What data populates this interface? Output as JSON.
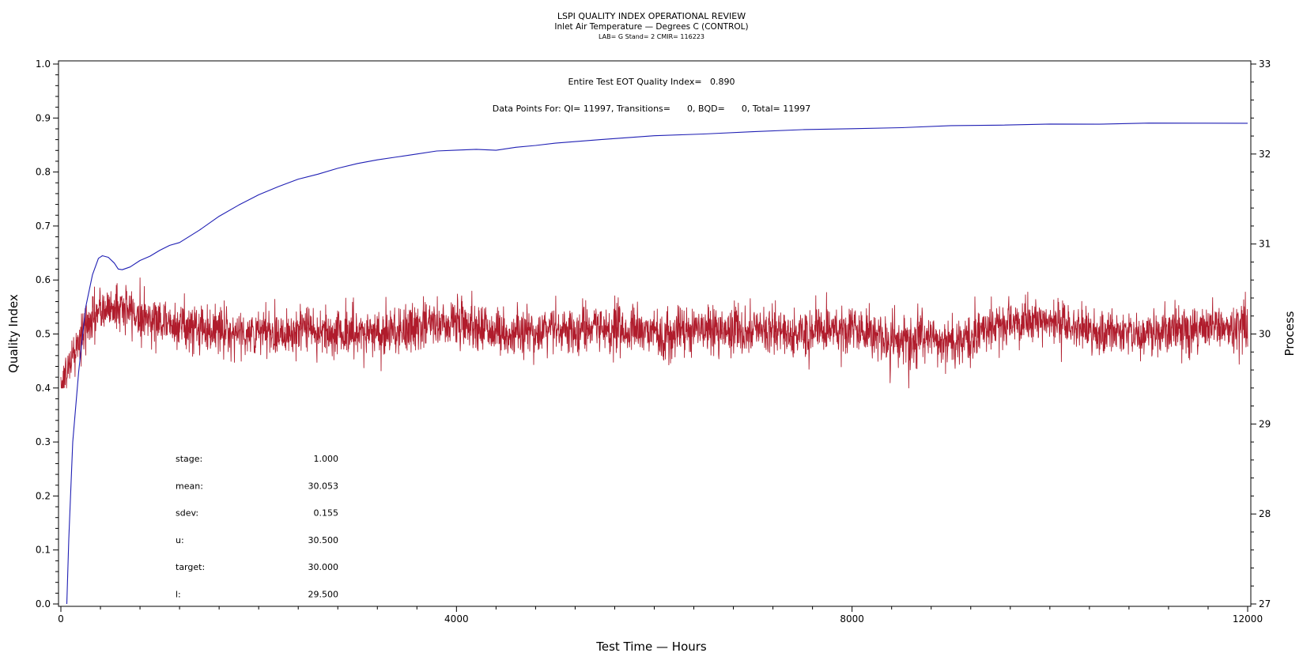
{
  "chart_data": {
    "type": "line",
    "title": "LSPI QUALITY INDEX OPERATIONAL REVIEW",
    "subtitle": "Inlet Air Temperature — Degrees C (CONTROL)",
    "subtitle2": "LAB= G Stand= 2 CMIR= 116223",
    "annotation1": "Entire Test EOT Quality Index=   0.890",
    "annotation2": "Data Points For: QI= 11997, Transitions=      0, BQD=      0, Total= 11997",
    "xlabel": "Test Time — Hours",
    "ylabel": "Quality Index",
    "y2label": "Process",
    "xlim": [
      0,
      12000
    ],
    "ylim": [
      0,
      1
    ],
    "y2lim": [
      27,
      33
    ],
    "x_ticks": [
      "0",
      "4000",
      "8000",
      "12000"
    ],
    "y_ticks": [
      "0.0",
      "0.1",
      "0.2",
      "0.3",
      "0.4",
      "0.5",
      "0.6",
      "0.7",
      "0.8",
      "0.9",
      "1.0"
    ],
    "y2_ticks": [
      "27",
      "28",
      "29",
      "30",
      "31",
      "32",
      "33"
    ],
    "series": [
      {
        "name": "Quality Index",
        "axis": "left",
        "color": "#1f1fb4",
        "x": [
          60,
          80,
          120,
          180,
          250,
          320,
          380,
          420,
          480,
          540,
          580,
          620,
          700,
          800,
          900,
          1000,
          1100,
          1200,
          1400,
          1600,
          1800,
          2000,
          2200,
          2400,
          2600,
          2800,
          3000,
          3200,
          3400,
          3600,
          3800,
          4000,
          4200,
          4400,
          4600,
          4800,
          5000,
          5500,
          6000,
          6500,
          7000,
          7500,
          8000,
          8500,
          9000,
          9500,
          10000,
          10500,
          11000,
          11500,
          12000
        ],
        "values": [
          0.0,
          0.12,
          0.3,
          0.43,
          0.55,
          0.61,
          0.64,
          0.645,
          0.643,
          0.632,
          0.62,
          0.618,
          0.625,
          0.637,
          0.645,
          0.655,
          0.665,
          0.67,
          0.693,
          0.718,
          0.738,
          0.757,
          0.773,
          0.787,
          0.797,
          0.807,
          0.815,
          0.822,
          0.828,
          0.834,
          0.838,
          0.841,
          0.842,
          0.84,
          0.845,
          0.849,
          0.853,
          0.861,
          0.867,
          0.871,
          0.875,
          0.878,
          0.881,
          0.883,
          0.885,
          0.887,
          0.888,
          0.889,
          0.89,
          0.89,
          0.89
        ]
      },
      {
        "name": "Inlet Air Temperature",
        "axis": "right",
        "color": "#b01c2c",
        "x": [
          0,
          50,
          100,
          200,
          300,
          400,
          500,
          600,
          700,
          800,
          1000,
          1200,
          1500,
          2000,
          2500,
          3000,
          3500,
          4000,
          4500,
          5000,
          5500,
          6000,
          6500,
          7000,
          7500,
          8000,
          8500,
          9000,
          9500,
          10000,
          10500,
          11000,
          11500,
          12000
        ],
        "values": [
          29.4,
          29.55,
          29.7,
          29.95,
          30.15,
          30.25,
          30.3,
          30.3,
          30.25,
          30.2,
          30.15,
          30.1,
          30.05,
          30.0,
          30.05,
          30.0,
          30.05,
          30.15,
          30.0,
          30.05,
          30.05,
          30.0,
          30.05,
          30.05,
          30.0,
          30.05,
          29.95,
          29.9,
          30.1,
          30.15,
          30.0,
          30.0,
          30.05,
          30.1
        ],
        "noise_sdev": 0.155,
        "points": 11997
      }
    ],
    "stats": [
      {
        "label": "stage:",
        "value": "1.000"
      },
      {
        "label": "mean:",
        "value": "30.053"
      },
      {
        "label": "sdev:",
        "value": "0.155"
      },
      {
        "label": "u:",
        "value": "30.500"
      },
      {
        "label": "target:",
        "value": "30.000"
      },
      {
        "label": "l:",
        "value": "29.500"
      }
    ]
  }
}
